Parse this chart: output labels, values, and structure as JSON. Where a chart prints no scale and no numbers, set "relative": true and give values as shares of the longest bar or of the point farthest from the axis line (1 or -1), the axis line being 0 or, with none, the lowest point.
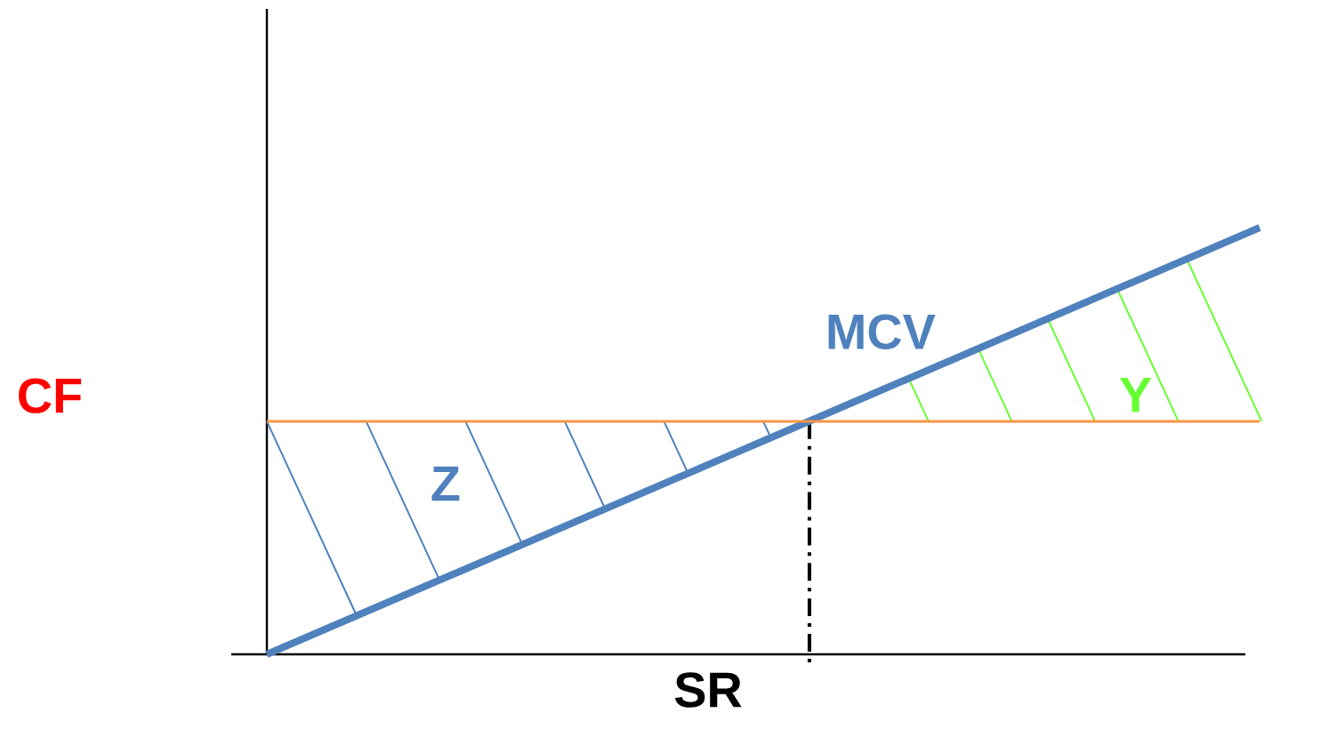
{
  "chart_data": {
    "type": "line",
    "relative": true,
    "xlabel": "SR",
    "ylabel": "CF",
    "categories": [
      null,
      null,
      null
    ],
    "series": [
      {
        "name": "MCV",
        "color": "#4f81bd",
        "values": [
          0,
          0.5,
          1
        ]
      },
      {
        "color": "#f79646",
        "values": [
          0.546,
          0.546,
          0.546
        ]
      }
    ],
    "annotations": [
      "Z",
      "Y"
    ]
  }
}
